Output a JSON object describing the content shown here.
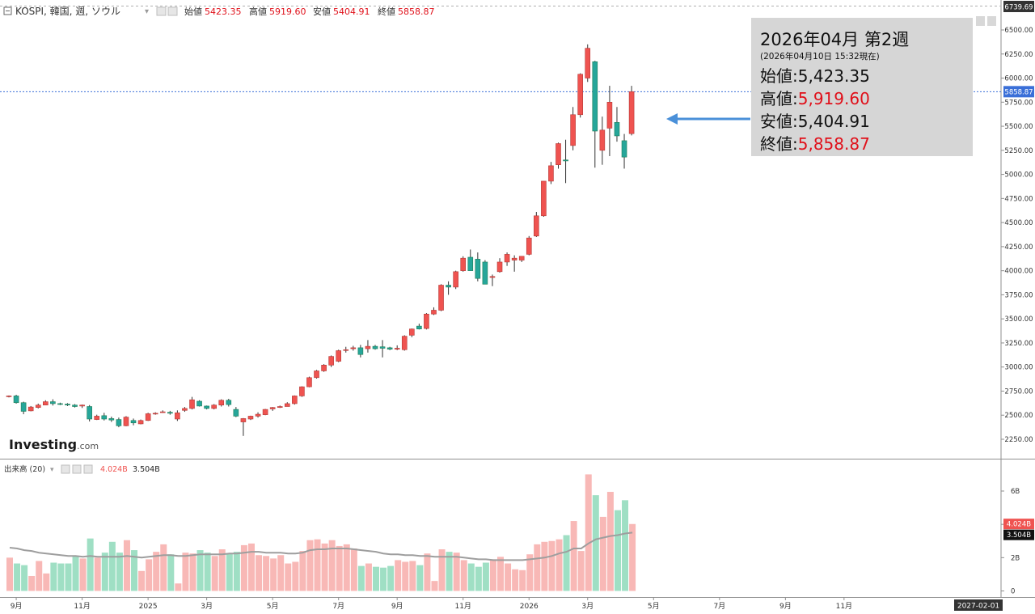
{
  "header": {
    "symbol": "KOSPI, 韓国, 週, ソウル",
    "collapse_icon": "minus-box-icon",
    "ohlc": [
      {
        "label": "始値",
        "value": "5423.35"
      },
      {
        "label": "高値",
        "value": "5919.60"
      },
      {
        "label": "安値",
        "value": "5404.91"
      },
      {
        "label": "終値",
        "value": "5858.87"
      }
    ]
  },
  "watermark": {
    "brand": "Investing",
    "suffix": ".com"
  },
  "info_box": {
    "title": "2026年04月 第2週",
    "subtitle": "(2026年04月10日 15:32現在)",
    "rows": [
      {
        "label": "始値",
        "value": "5,423.35",
        "color": "#111111"
      },
      {
        "label": "高値",
        "value": "5,919.60",
        "color": "#e0101a"
      },
      {
        "label": "安値",
        "value": "5,404.91",
        "color": "#111111"
      },
      {
        "label": "終値",
        "value": "5,858.87",
        "color": "#e0101a"
      }
    ]
  },
  "volume_header": {
    "label": "出来高 (20)",
    "value1": "4.024B",
    "value2": "3.504B"
  },
  "colors": {
    "up": "#ef5350",
    "down": "#26a69a",
    "up_vol": "#f8b8b6",
    "down_vol": "#9fdfc4",
    "arrow": "#4a90d9",
    "price_line": "#3a6fd8",
    "ma_line": "#9e9e9e"
  },
  "chart_data": [
    {
      "type": "candlestick",
      "title": "KOSPI, 韓国, 週, ソウル",
      "ylim": [
        2025,
        6740
      ],
      "y_ticks": [
        "2250.00",
        "2500.00",
        "2750.00",
        "3000.00",
        "3250.00",
        "3500.00",
        "3750.00",
        "4000.00",
        "4250.00",
        "4500.00",
        "4750.00",
        "5000.00",
        "5250.00",
        "5500.00",
        "5750.00",
        "6000.00",
        "6250.00",
        "6500.00"
      ],
      "y_labels_extra": {
        "top": "6739.69",
        "last": "5858.87"
      },
      "last_price": 5858.87,
      "x_ticks": [
        {
          "label": "9月",
          "index": 1
        },
        {
          "label": "11月",
          "index": 10
        },
        {
          "label": "2025",
          "index": 19
        },
        {
          "label": "3月",
          "index": 27
        },
        {
          "label": "5月",
          "index": 36
        },
        {
          "label": "7月",
          "index": 45
        },
        {
          "label": "9月",
          "index": 53
        },
        {
          "label": "11月",
          "index": 62
        },
        {
          "label": "2026",
          "index": 71
        },
        {
          "label": "3月",
          "index": 79
        },
        {
          "label": "5月",
          "index": 88
        },
        {
          "label": "7月",
          "index": 97
        },
        {
          "label": "9月",
          "index": 106
        },
        {
          "label": "11月",
          "index": 114
        }
      ],
      "x_end_label": "2027-02-01",
      "candles": [
        [
          2695,
          2705,
          2685,
          2700
        ],
        [
          2700,
          2712,
          2620,
          2630
        ],
        [
          2630,
          2640,
          2510,
          2540
        ],
        [
          2545,
          2595,
          2540,
          2585
        ],
        [
          2580,
          2620,
          2570,
          2605
        ],
        [
          2605,
          2655,
          2610,
          2640
        ],
        [
          2640,
          2665,
          2600,
          2620
        ],
        [
          2620,
          2630,
          2605,
          2615
        ],
        [
          2615,
          2625,
          2595,
          2605
        ],
        [
          2605,
          2615,
          2580,
          2590
        ],
        [
          2595,
          2610,
          2575,
          2605
        ],
        [
          2590,
          2605,
          2435,
          2460
        ],
        [
          2455,
          2505,
          2450,
          2490
        ],
        [
          2495,
          2525,
          2445,
          2460
        ],
        [
          2465,
          2485,
          2430,
          2450
        ],
        [
          2455,
          2475,
          2375,
          2390
        ],
        [
          2390,
          2490,
          2385,
          2480
        ],
        [
          2445,
          2465,
          2395,
          2420
        ],
        [
          2410,
          2455,
          2405,
          2445
        ],
        [
          2445,
          2525,
          2440,
          2515
        ],
        [
          2515,
          2530,
          2505,
          2520
        ],
        [
          2530,
          2550,
          2525,
          2535
        ],
        [
          2530,
          2545,
          2505,
          2520
        ],
        [
          2460,
          2550,
          2440,
          2525
        ],
        [
          2550,
          2585,
          2535,
          2570
        ],
        [
          2570,
          2690,
          2560,
          2660
        ],
        [
          2645,
          2655,
          2590,
          2595
        ],
        [
          2595,
          2600,
          2560,
          2570
        ],
        [
          2570,
          2615,
          2560,
          2605
        ],
        [
          2605,
          2665,
          2590,
          2655
        ],
        [
          2655,
          2670,
          2590,
          2610
        ],
        [
          2560,
          2585,
          2480,
          2490
        ],
        [
          2430,
          2470,
          2285,
          2465
        ],
        [
          2460,
          2495,
          2450,
          2490
        ],
        [
          2490,
          2530,
          2475,
          2510
        ],
        [
          2505,
          2565,
          2500,
          2560
        ],
        [
          2565,
          2585,
          2545,
          2580
        ],
        [
          2580,
          2600,
          2575,
          2590
        ],
        [
          2590,
          2635,
          2590,
          2620
        ],
        [
          2620,
          2705,
          2610,
          2700
        ],
        [
          2700,
          2800,
          2690,
          2795
        ],
        [
          2795,
          2900,
          2790,
          2890
        ],
        [
          2890,
          2970,
          2880,
          2960
        ],
        [
          2960,
          3030,
          2950,
          3020
        ],
        [
          3020,
          3120,
          3000,
          3110
        ],
        [
          3060,
          3180,
          3050,
          3170
        ],
        [
          3175,
          3210,
          3150,
          3180
        ],
        [
          3190,
          3220,
          3170,
          3200
        ],
        [
          3200,
          3230,
          3100,
          3130
        ],
        [
          3190,
          3280,
          3150,
          3215
        ],
        [
          3215,
          3230,
          3180,
          3190
        ],
        [
          3210,
          3280,
          3100,
          3195
        ],
        [
          3200,
          3210,
          3175,
          3185
        ],
        [
          3185,
          3225,
          3175,
          3195
        ],
        [
          3180,
          3330,
          3170,
          3320
        ],
        [
          3330,
          3400,
          3310,
          3395
        ],
        [
          3425,
          3450,
          3390,
          3395
        ],
        [
          3400,
          3560,
          3390,
          3550
        ],
        [
          3550,
          3620,
          3540,
          3590
        ],
        [
          3590,
          3860,
          3580,
          3850
        ],
        [
          3850,
          3890,
          3750,
          3830
        ],
        [
          3830,
          4000,
          3810,
          3990
        ],
        [
          4000,
          4150,
          3990,
          4130
        ],
        [
          4140,
          4220,
          4000,
          4000
        ],
        [
          4120,
          4190,
          3890,
          3920
        ],
        [
          4090,
          4110,
          3860,
          3860
        ],
        [
          3930,
          3960,
          3840,
          3940
        ],
        [
          3990,
          4130,
          3980,
          4090
        ],
        [
          4090,
          4190,
          4050,
          4170
        ],
        [
          4110,
          4160,
          3990,
          4130
        ],
        [
          4110,
          4150,
          4090,
          4150
        ],
        [
          4170,
          4360,
          4160,
          4340
        ],
        [
          4360,
          4610,
          4350,
          4570
        ],
        [
          4570,
          4930,
          4560,
          4930
        ],
        [
          4930,
          5130,
          4900,
          5090
        ],
        [
          5100,
          5330,
          5060,
          5320
        ],
        [
          5150,
          5360,
          4910,
          5140
        ],
        [
          5300,
          5700,
          5250,
          5620
        ],
        [
          5620,
          6050,
          5590,
          6040
        ],
        [
          6000,
          6350,
          5960,
          6310
        ],
        [
          6170,
          6180,
          5070,
          5450
        ],
        [
          5250,
          5600,
          5100,
          5460
        ],
        [
          5480,
          5920,
          5190,
          5750
        ],
        [
          5540,
          5700,
          5340,
          5400
        ],
        [
          5350,
          5420,
          5060,
          5180
        ],
        [
          5423.35,
          5919.6,
          5404.91,
          5858.87
        ]
      ],
      "volume": {
        "ylim": [
          0,
          7.2
        ],
        "y_ticks": [
          "0",
          "2B",
          "4B",
          "6B"
        ],
        "last_volume": 4.024,
        "ma20_last": 3.504,
        "values": [
          2.0,
          1.65,
          1.55,
          0.9,
          1.8,
          1.05,
          1.7,
          1.65,
          1.65,
          2.1,
          1.95,
          3.15,
          2.0,
          2.3,
          2.95,
          2.3,
          3.05,
          2.45,
          1.2,
          1.9,
          2.35,
          2.8,
          2.2,
          0.45,
          2.3,
          2.25,
          2.45,
          2.3,
          2.1,
          2.5,
          2.25,
          2.35,
          2.75,
          2.85,
          2.15,
          2.1,
          1.95,
          2.15,
          1.65,
          1.75,
          2.4,
          3.05,
          3.1,
          2.85,
          3.05,
          2.7,
          2.8,
          2.55,
          1.5,
          1.65,
          1.45,
          1.4,
          1.5,
          1.85,
          1.75,
          1.8,
          1.55,
          2.25,
          0.6,
          2.5,
          2.35,
          2.3,
          1.85,
          1.65,
          1.45,
          1.7,
          1.9,
          2.05,
          1.65,
          1.3,
          1.25,
          2.2,
          2.8,
          2.95,
          3.0,
          3.1,
          3.35,
          4.2,
          2.4,
          7.0,
          5.75,
          4.45,
          5.95,
          4.85,
          5.45,
          4.02
        ],
        "ma20": [
          2.6,
          2.55,
          2.45,
          2.4,
          2.3,
          2.25,
          2.2,
          2.15,
          2.1,
          2.1,
          2.05,
          2.1,
          2.05,
          2.05,
          2.05,
          2.05,
          2.1,
          2.05,
          2.0,
          2.05,
          2.1,
          2.15,
          2.15,
          2.1,
          2.1,
          2.15,
          2.2,
          2.2,
          2.2,
          2.2,
          2.25,
          2.25,
          2.3,
          2.35,
          2.35,
          2.3,
          2.3,
          2.3,
          2.25,
          2.25,
          2.3,
          2.45,
          2.5,
          2.5,
          2.55,
          2.55,
          2.55,
          2.5,
          2.45,
          2.4,
          2.35,
          2.25,
          2.2,
          2.2,
          2.15,
          2.15,
          2.1,
          2.1,
          2.05,
          2.05,
          2.05,
          2.05,
          2.0,
          1.95,
          1.9,
          1.9,
          1.85,
          1.85,
          1.85,
          1.85,
          1.85,
          1.9,
          1.95,
          2.0,
          2.1,
          2.25,
          2.35,
          2.55,
          2.55,
          2.85,
          3.1,
          3.2,
          3.3,
          3.35,
          3.45,
          3.504
        ]
      }
    }
  ]
}
